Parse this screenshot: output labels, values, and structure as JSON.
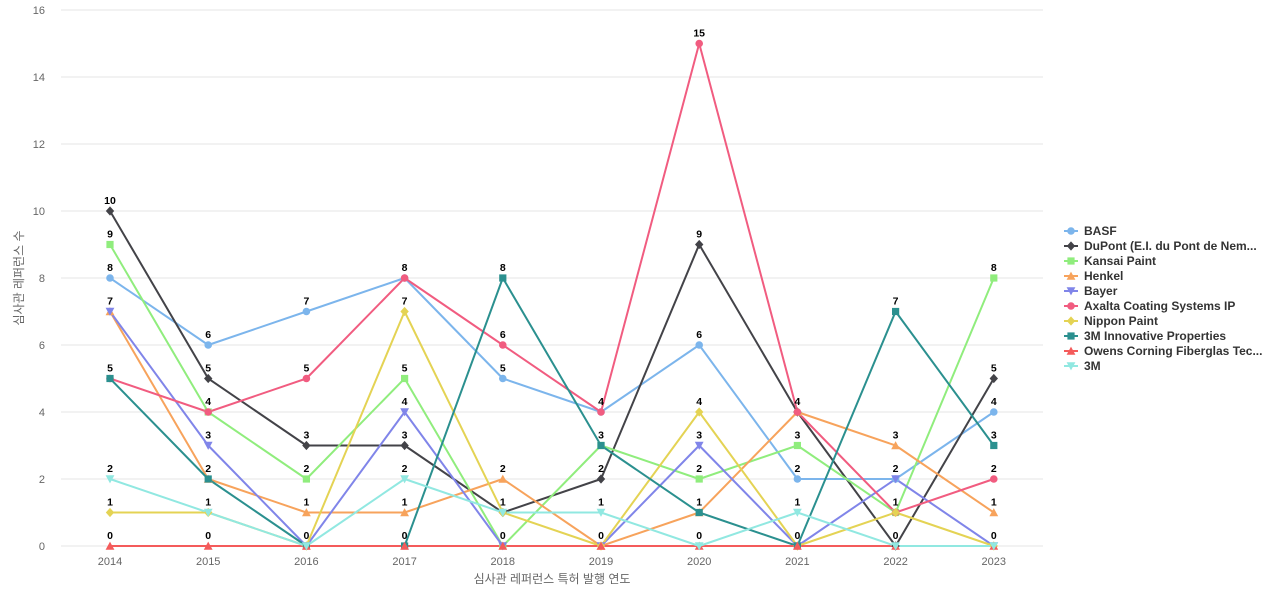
{
  "chart_data": {
    "type": "line",
    "xlabel": "심사관 레퍼런스 특허 발행 연도",
    "ylabel": "심사관 레퍼런스 수",
    "categories": [
      "2014",
      "2015",
      "2016",
      "2017",
      "2018",
      "2019",
      "2020",
      "2021",
      "2022",
      "2023"
    ],
    "ylim": [
      0,
      16
    ],
    "yticks": [
      0,
      2,
      4,
      6,
      8,
      10,
      12,
      14,
      16
    ],
    "grid": true,
    "legend_position": "right",
    "series": [
      {
        "name": "BASF",
        "color": "#7cb5ec",
        "marker": "circle",
        "values": [
          8,
          6,
          7,
          8,
          5,
          4,
          6,
          2,
          2,
          4
        ]
      },
      {
        "name": "DuPont (E.I. du Pont de Nem...",
        "color": "#434348",
        "marker": "diamond",
        "values": [
          10,
          5,
          3,
          3,
          1,
          2,
          9,
          4,
          0,
          5
        ]
      },
      {
        "name": "Kansai Paint",
        "color": "#90ed7d",
        "marker": "square",
        "values": [
          9,
          4,
          2,
          5,
          0,
          3,
          2,
          3,
          1,
          8
        ]
      },
      {
        "name": "Henkel",
        "color": "#f7a35c",
        "marker": "triangle",
        "values": [
          7,
          2,
          1,
          1,
          2,
          0,
          1,
          4,
          3,
          1
        ]
      },
      {
        "name": "Bayer",
        "color": "#8085e9",
        "marker": "triangle-down",
        "values": [
          7,
          3,
          0,
          4,
          0,
          0,
          3,
          0,
          2,
          0
        ]
      },
      {
        "name": "Axalta Coating Systems IP",
        "color": "#f15c80",
        "marker": "circle",
        "values": [
          5,
          4,
          5,
          8,
          6,
          4,
          15,
          4,
          1,
          2
        ]
      },
      {
        "name": "Nippon Paint",
        "color": "#e4d354",
        "marker": "diamond",
        "values": [
          1,
          1,
          0,
          7,
          1,
          0,
          4,
          0,
          1,
          0
        ]
      },
      {
        "name": "3M Innovative Properties",
        "color": "#2b908f",
        "marker": "square",
        "values": [
          5,
          2,
          0,
          0,
          8,
          3,
          1,
          0,
          7,
          3
        ]
      },
      {
        "name": "Owens Corning Fiberglas Tec...",
        "color": "#f45b5b",
        "marker": "triangle",
        "values": [
          0,
          0,
          0,
          0,
          0,
          0,
          0,
          0,
          0,
          0
        ]
      },
      {
        "name": "3M",
        "color": "#91e8e1",
        "marker": "triangle-down",
        "values": [
          2,
          1,
          0,
          2,
          1,
          1,
          0,
          1,
          0,
          0
        ]
      }
    ],
    "data_labels": [
      {
        "x": "2014",
        "values": [
          {
            "text": "10",
            "y": 10
          },
          {
            "text": "9",
            "y": 9
          },
          {
            "text": "8",
            "y": 8
          },
          {
            "text": "7",
            "y": 7
          },
          {
            "text": "5",
            "y": 5
          },
          {
            "text": "2",
            "y": 2
          },
          {
            "text": "1",
            "y": 1
          },
          {
            "text": "0",
            "y": 0
          }
        ]
      },
      {
        "x": "2015",
        "values": [
          {
            "text": "6",
            "y": 6
          },
          {
            "text": "5",
            "y": 5
          },
          {
            "text": "4",
            "y": 4
          },
          {
            "text": "3",
            "y": 3
          },
          {
            "text": "2",
            "y": 2
          },
          {
            "text": "1",
            "y": 1
          },
          {
            "text": "0",
            "y": 0
          }
        ]
      },
      {
        "x": "2016",
        "values": [
          {
            "text": "7",
            "y": 7
          },
          {
            "text": "5",
            "y": 5
          },
          {
            "text": "3",
            "y": 3
          },
          {
            "text": "2",
            "y": 2
          },
          {
            "text": "1",
            "y": 1
          },
          {
            "text": "0",
            "y": 0
          }
        ]
      },
      {
        "x": "2017",
        "values": [
          {
            "text": "8",
            "y": 8
          },
          {
            "text": "7",
            "y": 7
          },
          {
            "text": "5",
            "y": 5
          },
          {
            "text": "4",
            "y": 4
          },
          {
            "text": "3",
            "y": 3
          },
          {
            "text": "2",
            "y": 2
          },
          {
            "text": "1",
            "y": 1
          },
          {
            "text": "0",
            "y": 0
          }
        ]
      },
      {
        "x": "2018",
        "values": [
          {
            "text": "8",
            "y": 8
          },
          {
            "text": "6",
            "y": 6
          },
          {
            "text": "5",
            "y": 5
          },
          {
            "text": "2",
            "y": 2
          },
          {
            "text": "1",
            "y": 1
          },
          {
            "text": "0",
            "y": 0
          }
        ]
      },
      {
        "x": "2019",
        "values": [
          {
            "text": "4",
            "y": 4
          },
          {
            "text": "3",
            "y": 3
          },
          {
            "text": "2",
            "y": 2
          },
          {
            "text": "1",
            "y": 1
          },
          {
            "text": "0",
            "y": 0
          }
        ]
      },
      {
        "x": "2020",
        "values": [
          {
            "text": "15",
            "y": 15
          },
          {
            "text": "9",
            "y": 9
          },
          {
            "text": "6",
            "y": 6
          },
          {
            "text": "4",
            "y": 4
          },
          {
            "text": "3",
            "y": 3
          },
          {
            "text": "2",
            "y": 2
          },
          {
            "text": "1",
            "y": 1
          },
          {
            "text": "0",
            "y": 0
          }
        ]
      },
      {
        "x": "2021",
        "values": [
          {
            "text": "4",
            "y": 4
          },
          {
            "text": "3",
            "y": 3
          },
          {
            "text": "2",
            "y": 2
          },
          {
            "text": "1",
            "y": 1
          },
          {
            "text": "0",
            "y": 0
          }
        ]
      },
      {
        "x": "2022",
        "values": [
          {
            "text": "7",
            "y": 7
          },
          {
            "text": "3",
            "y": 3
          },
          {
            "text": "2",
            "y": 2
          },
          {
            "text": "1",
            "y": 1
          },
          {
            "text": "0",
            "y": 0
          }
        ]
      },
      {
        "x": "2023",
        "values": [
          {
            "text": "8",
            "y": 8
          },
          {
            "text": "5",
            "y": 5
          },
          {
            "text": "4",
            "y": 4
          },
          {
            "text": "3",
            "y": 3
          },
          {
            "text": "2",
            "y": 2
          },
          {
            "text": "1",
            "y": 1
          },
          {
            "text": "0",
            "y": 0
          }
        ]
      }
    ]
  }
}
